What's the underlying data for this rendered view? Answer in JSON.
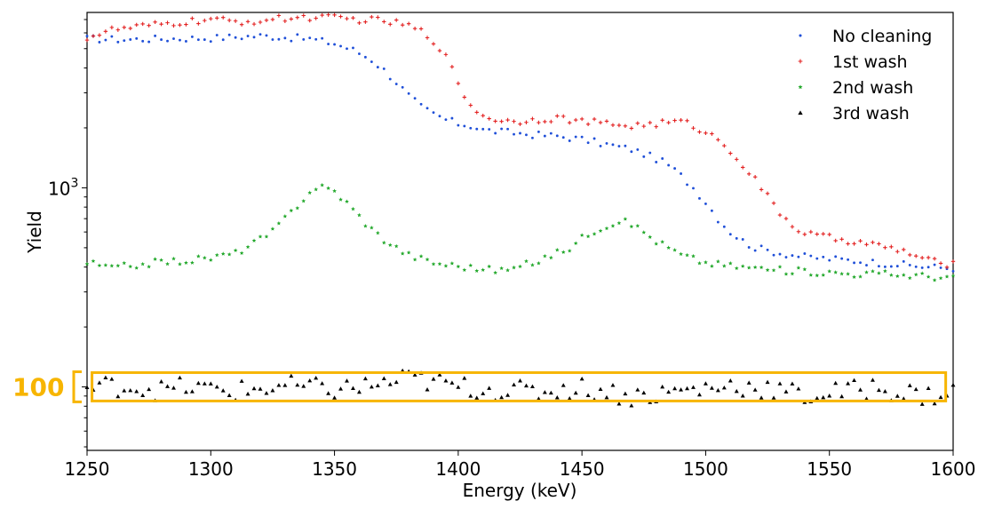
{
  "chart_data": {
    "type": "scatter",
    "xlabel": "Energy (keV)",
    "ylabel": "Yield",
    "xlim": [
      1250,
      1600
    ],
    "ylim": [
      48,
      7600
    ],
    "y_scale": "log",
    "x_ticks": [
      1250,
      1300,
      1350,
      1400,
      1450,
      1500,
      1550,
      1600
    ],
    "y_tick_values": [
      1000
    ],
    "y_tick_labels": [
      {
        "base": "10",
        "exp": "3"
      }
    ],
    "legend_position": "top-right",
    "grid": false,
    "annotation": {
      "label": "100",
      "color": "#F7B500",
      "y_range": [
        85,
        118
      ],
      "x_range": [
        1252,
        1597
      ]
    },
    "series": [
      {
        "name": "No cleaning",
        "marker": "dot",
        "color": "#1F4FD8",
        "points": [
          [
            1250,
            5600
          ],
          [
            1265,
            5550
          ],
          [
            1280,
            5600
          ],
          [
            1300,
            5650
          ],
          [
            1320,
            5800
          ],
          [
            1340,
            5600
          ],
          [
            1350,
            5300
          ],
          [
            1358,
            4900
          ],
          [
            1365,
            4400
          ],
          [
            1370,
            3900
          ],
          [
            1375,
            3400
          ],
          [
            1380,
            2900
          ],
          [
            1385,
            2550
          ],
          [
            1390,
            2350
          ],
          [
            1395,
            2200
          ],
          [
            1400,
            2100
          ],
          [
            1405,
            2050
          ],
          [
            1410,
            1950
          ],
          [
            1420,
            1900
          ],
          [
            1430,
            1850
          ],
          [
            1440,
            1820
          ],
          [
            1450,
            1750
          ],
          [
            1460,
            1650
          ],
          [
            1470,
            1560
          ],
          [
            1475,
            1480
          ],
          [
            1480,
            1400
          ],
          [
            1485,
            1300
          ],
          [
            1490,
            1150
          ],
          [
            1495,
            1000
          ],
          [
            1500,
            850
          ],
          [
            1505,
            700
          ],
          [
            1510,
            600
          ],
          [
            1515,
            540
          ],
          [
            1520,
            500
          ],
          [
            1530,
            470
          ],
          [
            1540,
            450
          ],
          [
            1550,
            440
          ],
          [
            1560,
            430
          ],
          [
            1570,
            420
          ],
          [
            1580,
            410
          ],
          [
            1590,
            400
          ],
          [
            1600,
            395
          ]
        ]
      },
      {
        "name": "1st wash",
        "marker": "plus",
        "color": "#E32222",
        "points": [
          [
            1250,
            5700
          ],
          [
            1260,
            6200
          ],
          [
            1270,
            6400
          ],
          [
            1280,
            6600
          ],
          [
            1290,
            6800
          ],
          [
            1300,
            7000
          ],
          [
            1310,
            6800
          ],
          [
            1320,
            6900
          ],
          [
            1330,
            7100
          ],
          [
            1340,
            7200
          ],
          [
            1350,
            7100
          ],
          [
            1360,
            7000
          ],
          [
            1370,
            6900
          ],
          [
            1380,
            6500
          ],
          [
            1385,
            6100
          ],
          [
            1390,
            5500
          ],
          [
            1393,
            5000
          ],
          [
            1396,
            4300
          ],
          [
            1399,
            3600
          ],
          [
            1402,
            3000
          ],
          [
            1405,
            2600
          ],
          [
            1410,
            2300
          ],
          [
            1420,
            2150
          ],
          [
            1430,
            2200
          ],
          [
            1440,
            2250
          ],
          [
            1450,
            2150
          ],
          [
            1460,
            2100
          ],
          [
            1470,
            2050
          ],
          [
            1480,
            2100
          ],
          [
            1490,
            2150
          ],
          [
            1495,
            2050
          ],
          [
            1500,
            1900
          ],
          [
            1505,
            1750
          ],
          [
            1510,
            1550
          ],
          [
            1515,
            1300
          ],
          [
            1520,
            1100
          ],
          [
            1525,
            900
          ],
          [
            1530,
            750
          ],
          [
            1535,
            650
          ],
          [
            1540,
            590
          ],
          [
            1550,
            560
          ],
          [
            1560,
            540
          ],
          [
            1570,
            510
          ],
          [
            1580,
            480
          ],
          [
            1590,
            430
          ],
          [
            1600,
            410
          ]
        ]
      },
      {
        "name": "2nd wash",
        "marker": "star",
        "color": "#22A82B",
        "points": [
          [
            1250,
            420
          ],
          [
            1260,
            395
          ],
          [
            1270,
            410
          ],
          [
            1280,
            425
          ],
          [
            1290,
            430
          ],
          [
            1300,
            445
          ],
          [
            1310,
            470
          ],
          [
            1320,
            550
          ],
          [
            1325,
            600
          ],
          [
            1330,
            700
          ],
          [
            1335,
            820
          ],
          [
            1340,
            950
          ],
          [
            1343,
            1020
          ],
          [
            1346,
            1000
          ],
          [
            1350,
            960
          ],
          [
            1355,
            840
          ],
          [
            1360,
            720
          ],
          [
            1365,
            620
          ],
          [
            1370,
            550
          ],
          [
            1375,
            500
          ],
          [
            1380,
            460
          ],
          [
            1385,
            440
          ],
          [
            1390,
            420
          ],
          [
            1400,
            405
          ],
          [
            1410,
            390
          ],
          [
            1420,
            385
          ],
          [
            1430,
            420
          ],
          [
            1440,
            470
          ],
          [
            1445,
            500
          ],
          [
            1450,
            560
          ],
          [
            1455,
            610
          ],
          [
            1460,
            650
          ],
          [
            1465,
            680
          ],
          [
            1470,
            660
          ],
          [
            1475,
            600
          ],
          [
            1480,
            540
          ],
          [
            1485,
            500
          ],
          [
            1490,
            460
          ],
          [
            1500,
            420
          ],
          [
            1510,
            405
          ],
          [
            1520,
            395
          ],
          [
            1530,
            385
          ],
          [
            1540,
            380
          ],
          [
            1550,
            375
          ],
          [
            1560,
            370
          ],
          [
            1570,
            370
          ],
          [
            1580,
            365
          ],
          [
            1590,
            360
          ],
          [
            1600,
            350
          ]
        ]
      },
      {
        "name": "3rd wash",
        "marker": "triangle",
        "color": "#000000",
        "points": [
          [
            1252,
            98
          ],
          [
            1260,
            102
          ],
          [
            1270,
            100
          ],
          [
            1280,
            96
          ],
          [
            1290,
            100
          ],
          [
            1300,
            97
          ],
          [
            1310,
            95
          ],
          [
            1320,
            98
          ],
          [
            1330,
            101
          ],
          [
            1340,
            99
          ],
          [
            1350,
            97
          ],
          [
            1360,
            100
          ],
          [
            1370,
            104
          ],
          [
            1380,
            110
          ],
          [
            1390,
            106
          ],
          [
            1400,
            100
          ],
          [
            1410,
            98
          ],
          [
            1420,
            96
          ],
          [
            1430,
            94
          ],
          [
            1440,
            97
          ],
          [
            1450,
            99
          ],
          [
            1460,
            95
          ],
          [
            1470,
            90
          ],
          [
            1480,
            92
          ],
          [
            1490,
            96
          ],
          [
            1500,
            98
          ],
          [
            1510,
            102
          ],
          [
            1520,
            100
          ],
          [
            1530,
            96
          ],
          [
            1540,
            90
          ],
          [
            1550,
            93
          ],
          [
            1560,
            96
          ],
          [
            1570,
            100
          ],
          [
            1580,
            93
          ],
          [
            1590,
            90
          ],
          [
            1600,
            95
          ]
        ]
      }
    ]
  }
}
